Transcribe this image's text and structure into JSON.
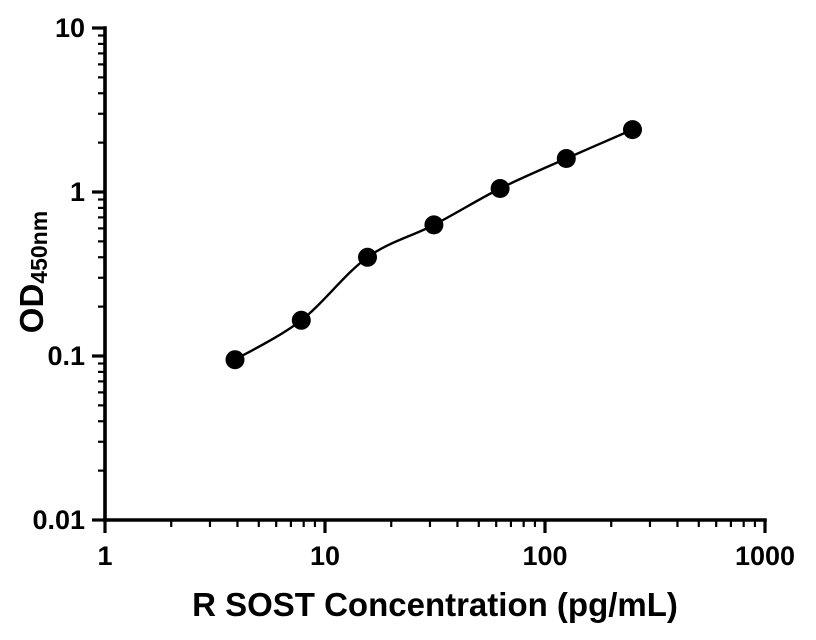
{
  "chart_data": {
    "type": "scatter",
    "title": "",
    "xlabel": "R SOST Concentration (pg/mL)",
    "ylabel_main": "OD",
    "ylabel_sub": "450nm",
    "xscale": "log",
    "yscale": "log",
    "xlim": [
      1,
      1000
    ],
    "ylim": [
      0.01,
      10
    ],
    "x": [
      3.9,
      7.8,
      15.6,
      31.25,
      62.5,
      125,
      250
    ],
    "y": [
      0.095,
      0.165,
      0.4,
      0.63,
      1.05,
      1.6,
      2.4
    ],
    "x_tick_values": [
      1,
      10,
      100,
      1000
    ],
    "x_tick_labels": [
      "1",
      "10",
      "100",
      "1000"
    ],
    "y_tick_values": [
      0.01,
      0.1,
      1,
      10
    ],
    "y_tick_labels": [
      "0.01",
      "0.1",
      "1",
      "10"
    ],
    "curve": "smooth-fit-through-points",
    "grid": false,
    "legend": "none",
    "marker_color": "#000000",
    "line_color": "#000000",
    "axis_color": "#000000",
    "background_color": "#ffffff"
  }
}
